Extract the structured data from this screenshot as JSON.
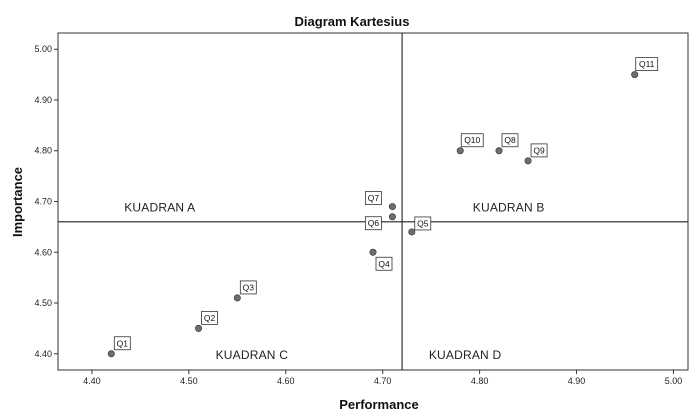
{
  "chart_data": {
    "type": "scatter",
    "title": "Diagram Kartesius",
    "xlabel": "Performance",
    "ylabel": "Importance",
    "xlim": [
      4.365,
      5.015
    ],
    "ylim": [
      4.368,
      5.032
    ],
    "xticks": [
      4.4,
      4.5,
      4.6,
      4.7,
      4.8,
      4.9,
      5.0
    ],
    "yticks": [
      4.4,
      4.5,
      4.6,
      4.7,
      4.8,
      4.9,
      5.0
    ],
    "tick_format": "2 decimals",
    "grid": false,
    "reference_lines": {
      "x": 4.72,
      "y": 4.66
    },
    "point_color": "#6e6e6e",
    "points": [
      {
        "label": "Q1",
        "x": 4.42,
        "y": 4.4
      },
      {
        "label": "Q2",
        "x": 4.51,
        "y": 4.45
      },
      {
        "label": "Q3",
        "x": 4.55,
        "y": 4.51
      },
      {
        "label": "Q4",
        "x": 4.69,
        "y": 4.6
      },
      {
        "label": "Q5",
        "x": 4.73,
        "y": 4.64
      },
      {
        "label": "Q6",
        "x": 4.71,
        "y": 4.67
      },
      {
        "label": "Q7",
        "x": 4.71,
        "y": 4.69
      },
      {
        "label": "Q8",
        "x": 4.82,
        "y": 4.8
      },
      {
        "label": "Q9",
        "x": 4.85,
        "y": 4.78
      },
      {
        "label": "Q10",
        "x": 4.78,
        "y": 4.8
      },
      {
        "label": "Q11",
        "x": 4.96,
        "y": 4.95
      }
    ],
    "quadrants": [
      {
        "label": "KUADRAN A",
        "x": 4.47,
        "y": 4.68
      },
      {
        "label": "KUADRAN B",
        "x": 4.83,
        "y": 4.68
      },
      {
        "label": "KUADRAN C",
        "x": 4.565,
        "y": 4.39
      },
      {
        "label": "KUADRAN D",
        "x": 4.785,
        "y": 4.39
      }
    ]
  }
}
